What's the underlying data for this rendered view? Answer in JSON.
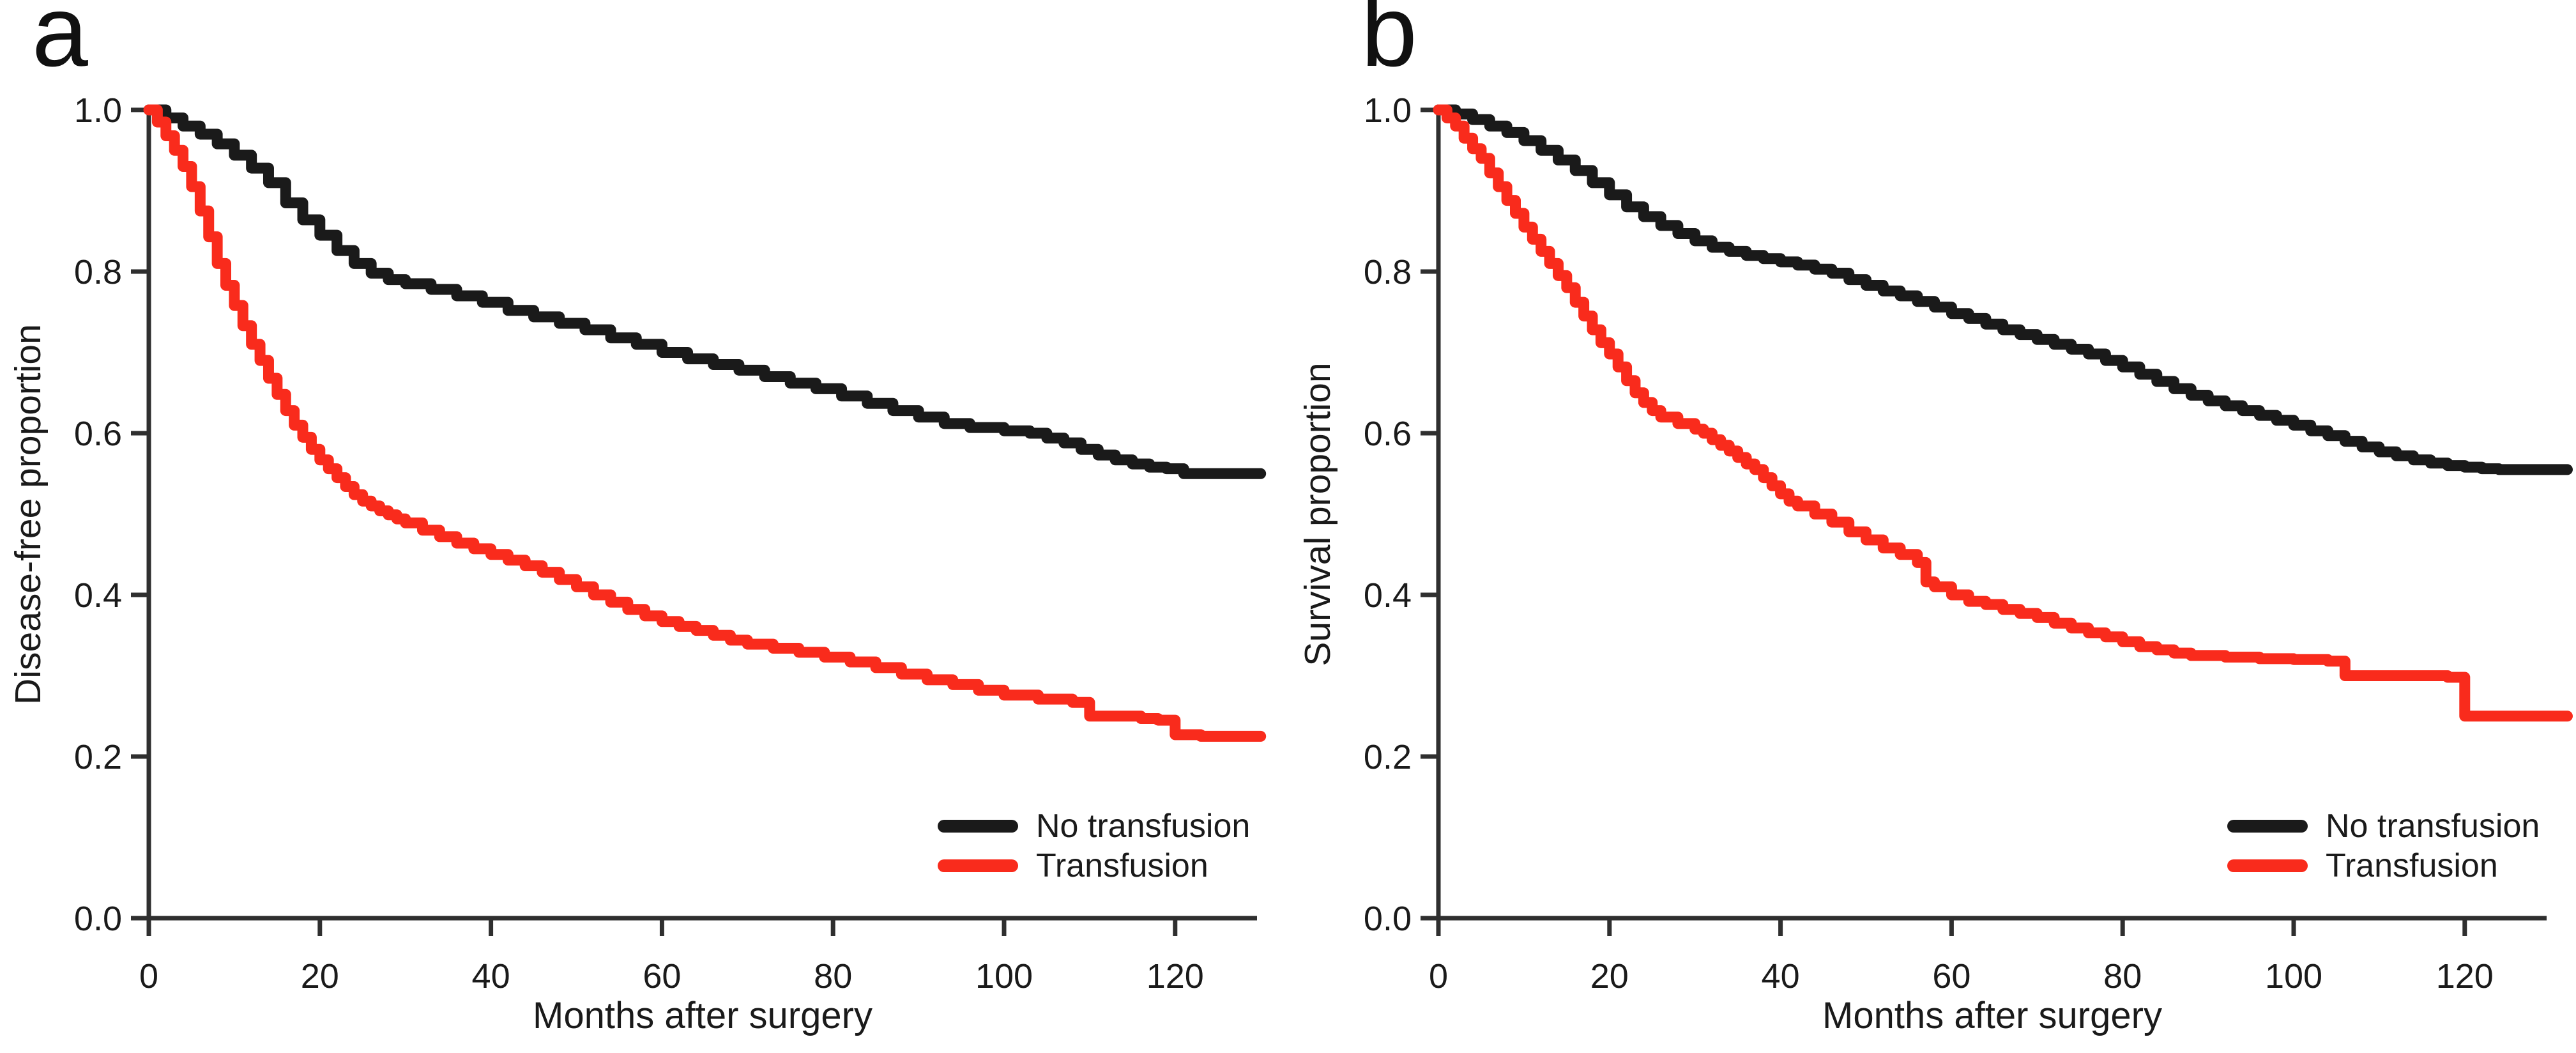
{
  "figure": {
    "background_color": "#ffffff",
    "axis_color": "#2f2f2f",
    "text_color": "#1a1a1a"
  },
  "chart_data": [
    {
      "type": "line",
      "subtype": "kaplan-meier-step",
      "panel_label": "a",
      "xlabel": "Months after surgery",
      "ylabel": "Disease-free proportion",
      "xlim": [
        0,
        130
      ],
      "ylim": [
        0.0,
        1.0
      ],
      "x_ticks": [
        0,
        20,
        40,
        60,
        80,
        100,
        120
      ],
      "y_ticks": [
        0.0,
        0.2,
        0.4,
        0.6,
        0.8,
        1.0
      ],
      "y_tick_labels": [
        "0.0",
        "0.2",
        "0.4",
        "0.6",
        "0.8",
        "1.0"
      ],
      "grid": false,
      "legend_position": "lower right",
      "series": [
        {
          "name": "No transfusion",
          "color": "#1a1a1a",
          "points": [
            [
              0,
              1
            ],
            [
              2,
              0.99
            ],
            [
              4,
              0.98
            ],
            [
              6,
              0.97
            ],
            [
              8,
              0.958
            ],
            [
              10,
              0.944
            ],
            [
              12,
              0.928
            ],
            [
              14,
              0.91
            ],
            [
              16,
              0.885
            ],
            [
              18,
              0.864
            ],
            [
              20,
              0.845
            ],
            [
              22,
              0.826
            ],
            [
              24,
              0.81
            ],
            [
              26,
              0.798
            ],
            [
              28,
              0.79
            ],
            [
              30,
              0.785
            ],
            [
              33,
              0.778
            ],
            [
              36,
              0.77
            ],
            [
              39,
              0.762
            ],
            [
              42,
              0.752
            ],
            [
              45,
              0.744
            ],
            [
              48,
              0.736
            ],
            [
              51,
              0.728
            ],
            [
              54,
              0.718
            ],
            [
              57,
              0.71
            ],
            [
              60,
              0.7
            ],
            [
              63,
              0.692
            ],
            [
              66,
              0.685
            ],
            [
              69,
              0.678
            ],
            [
              72,
              0.67
            ],
            [
              75,
              0.662
            ],
            [
              78,
              0.655
            ],
            [
              81,
              0.646
            ],
            [
              84,
              0.637
            ],
            [
              87,
              0.628
            ],
            [
              90,
              0.62
            ],
            [
              93,
              0.612
            ],
            [
              96,
              0.607
            ],
            [
              100,
              0.603
            ],
            [
              103,
              0.6
            ],
            [
              105,
              0.594
            ],
            [
              107,
              0.588
            ],
            [
              109,
              0.58
            ],
            [
              111,
              0.573
            ],
            [
              113,
              0.567
            ],
            [
              115,
              0.562
            ],
            [
              117,
              0.558
            ],
            [
              119,
              0.556
            ],
            [
              121,
              0.55
            ],
            [
              130,
              0.55
            ]
          ]
        },
        {
          "name": "Transfusion",
          "color": "#f92b1c",
          "points": [
            [
              0,
              1
            ],
            [
              1,
              0.985
            ],
            [
              2,
              0.968
            ],
            [
              3,
              0.95
            ],
            [
              4,
              0.93
            ],
            [
              5,
              0.905
            ],
            [
              6,
              0.875
            ],
            [
              7,
              0.843
            ],
            [
              8,
              0.81
            ],
            [
              9,
              0.783
            ],
            [
              10,
              0.758
            ],
            [
              11,
              0.733
            ],
            [
              12,
              0.71
            ],
            [
              13,
              0.69
            ],
            [
              14,
              0.668
            ],
            [
              15,
              0.648
            ],
            [
              16,
              0.628
            ],
            [
              17,
              0.61
            ],
            [
              18,
              0.595
            ],
            [
              19,
              0.58
            ],
            [
              20,
              0.567
            ],
            [
              21,
              0.556
            ],
            [
              22,
              0.545
            ],
            [
              23,
              0.534
            ],
            [
              24,
              0.524
            ],
            [
              25,
              0.516
            ],
            [
              26,
              0.51
            ],
            [
              27,
              0.504
            ],
            [
              28,
              0.499
            ],
            [
              29,
              0.494
            ],
            [
              30,
              0.489
            ],
            [
              32,
              0.48
            ],
            [
              34,
              0.472
            ],
            [
              36,
              0.464
            ],
            [
              38,
              0.457
            ],
            [
              40,
              0.45
            ],
            [
              42,
              0.443
            ],
            [
              44,
              0.436
            ],
            [
              46,
              0.428
            ],
            [
              48,
              0.419
            ],
            [
              50,
              0.41
            ],
            [
              52,
              0.4
            ],
            [
              54,
              0.391
            ],
            [
              56,
              0.382
            ],
            [
              58,
              0.374
            ],
            [
              60,
              0.367
            ],
            [
              62,
              0.361
            ],
            [
              64,
              0.356
            ],
            [
              66,
              0.35
            ],
            [
              68,
              0.344
            ],
            [
              70,
              0.339
            ],
            [
              73,
              0.334
            ],
            [
              76,
              0.329
            ],
            [
              79,
              0.323
            ],
            [
              82,
              0.317
            ],
            [
              85,
              0.31
            ],
            [
              88,
              0.302
            ],
            [
              91,
              0.295
            ],
            [
              94,
              0.289
            ],
            [
              97,
              0.282
            ],
            [
              100,
              0.276
            ],
            [
              104,
              0.271
            ],
            [
              108,
              0.267
            ],
            [
              110,
              0.25
            ],
            [
              116,
              0.247
            ],
            [
              118,
              0.245
            ],
            [
              120,
              0.227
            ],
            [
              123,
              0.225
            ],
            [
              130,
              0.225
            ]
          ]
        }
      ]
    },
    {
      "type": "line",
      "subtype": "kaplan-meier-step",
      "panel_label": "b",
      "xlabel": "Months after surgery",
      "ylabel": "Survival proportion",
      "xlim": [
        0,
        130
      ],
      "ylim": [
        0.0,
        1.0
      ],
      "x_ticks": [
        0,
        20,
        40,
        60,
        80,
        100,
        120
      ],
      "y_ticks": [
        0.0,
        0.2,
        0.4,
        0.6,
        0.8,
        1.0
      ],
      "y_tick_labels": [
        "0.0",
        "0.2",
        "0.4",
        "0.6",
        "0.8",
        "1.0"
      ],
      "grid": false,
      "legend_position": "lower right",
      "series": [
        {
          "name": "No transfusion",
          "color": "#1a1a1a",
          "points": [
            [
              0,
              1
            ],
            [
              2,
              0.995
            ],
            [
              4,
              0.988
            ],
            [
              6,
              0.98
            ],
            [
              8,
              0.972
            ],
            [
              10,
              0.962
            ],
            [
              12,
              0.95
            ],
            [
              14,
              0.938
            ],
            [
              16,
              0.925
            ],
            [
              18,
              0.91
            ],
            [
              20,
              0.895
            ],
            [
              22,
              0.88
            ],
            [
              24,
              0.868
            ],
            [
              26,
              0.857
            ],
            [
              28,
              0.847
            ],
            [
              30,
              0.838
            ],
            [
              32,
              0.83
            ],
            [
              34,
              0.825
            ],
            [
              36,
              0.82
            ],
            [
              38,
              0.816
            ],
            [
              40,
              0.812
            ],
            [
              42,
              0.808
            ],
            [
              44,
              0.803
            ],
            [
              46,
              0.798
            ],
            [
              48,
              0.79
            ],
            [
              50,
              0.783
            ],
            [
              52,
              0.776
            ],
            [
              54,
              0.77
            ],
            [
              56,
              0.763
            ],
            [
              58,
              0.756
            ],
            [
              60,
              0.748
            ],
            [
              62,
              0.742
            ],
            [
              64,
              0.735
            ],
            [
              66,
              0.728
            ],
            [
              68,
              0.722
            ],
            [
              70,
              0.716
            ],
            [
              72,
              0.71
            ],
            [
              74,
              0.704
            ],
            [
              76,
              0.698
            ],
            [
              78,
              0.69
            ],
            [
              80,
              0.682
            ],
            [
              82,
              0.673
            ],
            [
              84,
              0.664
            ],
            [
              86,
              0.655
            ],
            [
              88,
              0.647
            ],
            [
              90,
              0.64
            ],
            [
              92,
              0.634
            ],
            [
              94,
              0.628
            ],
            [
              96,
              0.622
            ],
            [
              98,
              0.616
            ],
            [
              100,
              0.61
            ],
            [
              102,
              0.603
            ],
            [
              104,
              0.597
            ],
            [
              106,
              0.59
            ],
            [
              108,
              0.583
            ],
            [
              110,
              0.577
            ],
            [
              112,
              0.572
            ],
            [
              114,
              0.567
            ],
            [
              116,
              0.563
            ],
            [
              118,
              0.56
            ],
            [
              120,
              0.558
            ],
            [
              122,
              0.556
            ],
            [
              124,
              0.555
            ],
            [
              132,
              0.555
            ]
          ]
        },
        {
          "name": "Transfusion",
          "color": "#f92b1c",
          "points": [
            [
              0,
              1
            ],
            [
              1,
              0.99
            ],
            [
              2,
              0.98
            ],
            [
              3,
              0.965
            ],
            [
              4,
              0.952
            ],
            [
              5,
              0.94
            ],
            [
              6,
              0.922
            ],
            [
              7,
              0.905
            ],
            [
              8,
              0.888
            ],
            [
              9,
              0.872
            ],
            [
              10,
              0.855
            ],
            [
              11,
              0.84
            ],
            [
              12,
              0.825
            ],
            [
              13,
              0.81
            ],
            [
              14,
              0.795
            ],
            [
              15,
              0.78
            ],
            [
              16,
              0.762
            ],
            [
              17,
              0.745
            ],
            [
              18,
              0.728
            ],
            [
              19,
              0.712
            ],
            [
              20,
              0.698
            ],
            [
              21,
              0.682
            ],
            [
              22,
              0.665
            ],
            [
              23,
              0.65
            ],
            [
              24,
              0.638
            ],
            [
              25,
              0.628
            ],
            [
              26,
              0.62
            ],
            [
              28,
              0.612
            ],
            [
              30,
              0.605
            ],
            [
              31,
              0.6
            ],
            [
              32,
              0.592
            ],
            [
              33,
              0.585
            ],
            [
              34,
              0.578
            ],
            [
              35,
              0.57
            ],
            [
              36,
              0.562
            ],
            [
              37,
              0.555
            ],
            [
              38,
              0.545
            ],
            [
              39,
              0.535
            ],
            [
              40,
              0.525
            ],
            [
              41,
              0.516
            ],
            [
              42,
              0.51
            ],
            [
              44,
              0.5
            ],
            [
              46,
              0.49
            ],
            [
              48,
              0.478
            ],
            [
              50,
              0.468
            ],
            [
              52,
              0.458
            ],
            [
              54,
              0.45
            ],
            [
              56,
              0.44
            ],
            [
              57,
              0.416
            ],
            [
              58,
              0.41
            ],
            [
              60,
              0.4
            ],
            [
              62,
              0.392
            ],
            [
              64,
              0.388
            ],
            [
              66,
              0.382
            ],
            [
              68,
              0.377
            ],
            [
              70,
              0.372
            ],
            [
              72,
              0.365
            ],
            [
              74,
              0.359
            ],
            [
              76,
              0.353
            ],
            [
              78,
              0.348
            ],
            [
              80,
              0.342
            ],
            [
              82,
              0.336
            ],
            [
              84,
              0.332
            ],
            [
              86,
              0.328
            ],
            [
              88,
              0.325
            ],
            [
              92,
              0.323
            ],
            [
              96,
              0.321
            ],
            [
              100,
              0.32
            ],
            [
              104,
              0.318
            ],
            [
              106,
              0.3
            ],
            [
              112,
              0.3
            ],
            [
              118,
              0.298
            ],
            [
              120,
              0.25
            ],
            [
              132,
              0.25
            ]
          ]
        }
      ]
    }
  ]
}
